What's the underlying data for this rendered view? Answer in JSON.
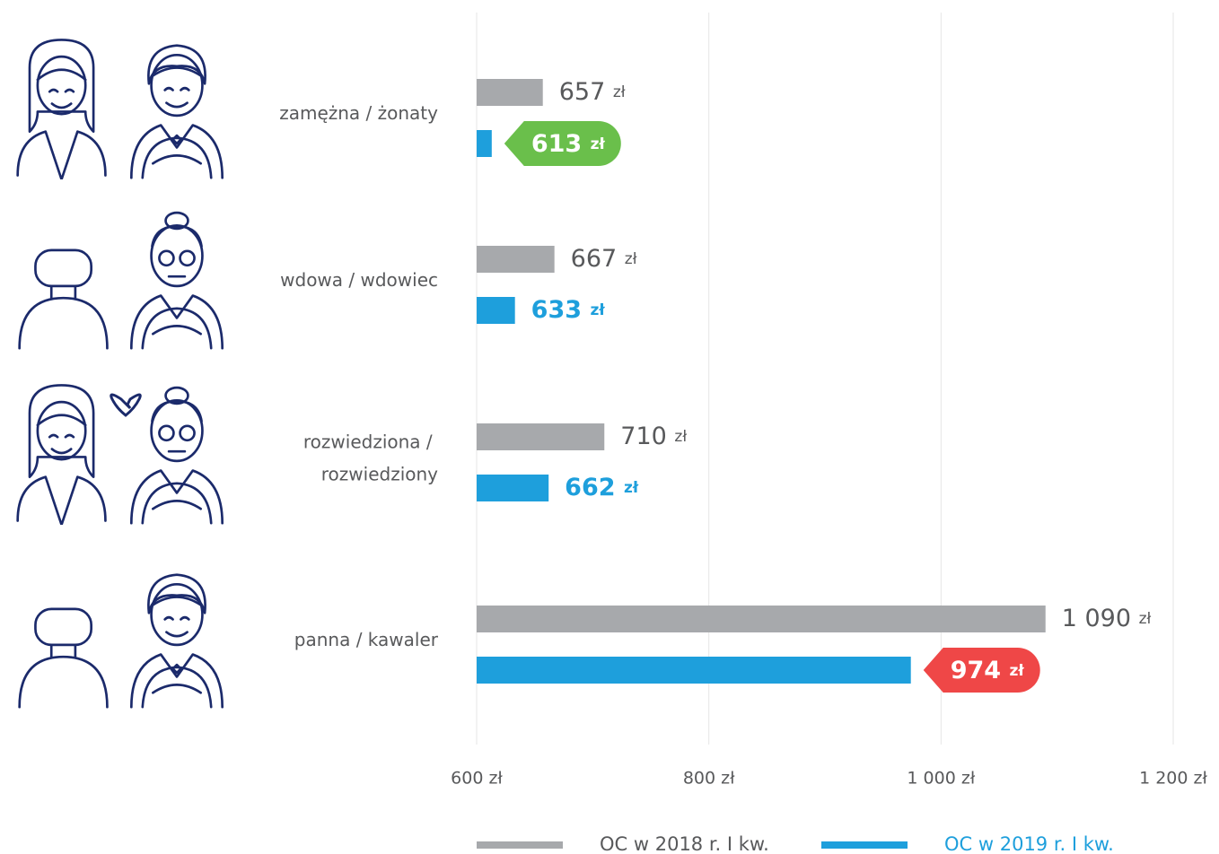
{
  "chart_data": {
    "type": "bar",
    "orientation": "horizontal",
    "categories": [
      "zamężna / żonaty",
      "wdowa / wdowiec",
      "rozwiedziona / rozwiedziony",
      "panna / kawaler"
    ],
    "series": [
      {
        "name": "OC w 2018 r. I kw.",
        "color": "#a7a9ac",
        "label_color": "#58595b",
        "values": [
          657,
          667,
          710,
          1090
        ],
        "value_labels": [
          "657 zł",
          "667 zł",
          "710 zł",
          "1 090 zł"
        ]
      },
      {
        "name": "OC w 2019 r. I kw.",
        "color": "#1e9fdc",
        "label_color": "#1e9fdc",
        "values": [
          613,
          633,
          662,
          974
        ],
        "value_labels": [
          "613 zł",
          "633 zł",
          "662 zł",
          "974 zł"
        ],
        "badge_colors": [
          "#6abf4b",
          null,
          null,
          "#ef4747"
        ]
      }
    ],
    "xlim": [
      600,
      1200
    ],
    "xticks": [
      {
        "value": 600,
        "label": "600 zł"
      },
      {
        "value": 800,
        "label": "800 zł"
      },
      {
        "value": 1000,
        "label": "1 000 zł"
      },
      {
        "value": 1200,
        "label": "1 200 zł"
      }
    ],
    "grid": true,
    "legend": "bottom"
  }
}
